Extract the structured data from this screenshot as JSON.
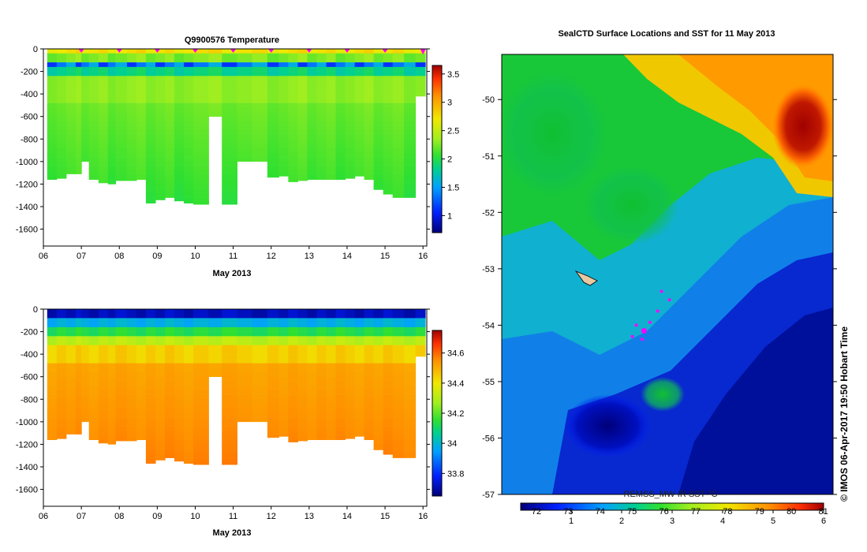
{
  "chart_data": [
    {
      "type": "heatmap",
      "title": "Q9900576  Temperature",
      "xlabel": "May 2013",
      "ylabel": "",
      "x_ticks": [
        "06",
        "07",
        "08",
        "09",
        "10",
        "11",
        "12",
        "13",
        "14",
        "15",
        "16"
      ],
      "y_ticks": [
        0,
        -200,
        -400,
        -600,
        -800,
        -1000,
        -1200,
        -1400,
        -1600
      ],
      "ylim": [
        -1750,
        0
      ],
      "xlim": [
        6,
        16.1
      ],
      "colorbar_ticks": [
        1,
        1.5,
        2,
        2.5,
        3,
        3.5
      ],
      "colorbar_range": [
        0.7,
        3.65
      ],
      "profile_markers_day": [
        7,
        8,
        9,
        10,
        11,
        12,
        13,
        14,
        15,
        16
      ],
      "profiles": [
        {
          "day": 6.1,
          "depth": -1160
        },
        {
          "day": 6.35,
          "depth": -1150
        },
        {
          "day": 6.6,
          "depth": -1110
        },
        {
          "day": 6.85,
          "depth": -1110
        },
        {
          "day": 7.0,
          "depth": -1000
        },
        {
          "day": 7.2,
          "depth": -1160
        },
        {
          "day": 7.45,
          "depth": -1190
        },
        {
          "day": 7.7,
          "depth": -1200
        },
        {
          "day": 7.9,
          "depth": -1170
        },
        {
          "day": 8.2,
          "depth": -1170
        },
        {
          "day": 8.45,
          "depth": -1160
        },
        {
          "day": 8.7,
          "depth": -1370
        },
        {
          "day": 8.95,
          "depth": -1340
        },
        {
          "day": 9.2,
          "depth": -1320
        },
        {
          "day": 9.45,
          "depth": -1350
        },
        {
          "day": 9.7,
          "depth": -1370
        },
        {
          "day": 9.95,
          "depth": -1380
        },
        {
          "day": 10.35,
          "depth": -600
        },
        {
          "day": 10.7,
          "depth": -1380
        },
        {
          "day": 11.1,
          "depth": -1000
        },
        {
          "day": 11.5,
          "depth": -1000
        },
        {
          "day": 11.9,
          "depth": -1140
        },
        {
          "day": 12.2,
          "depth": -1130
        },
        {
          "day": 12.45,
          "depth": -1180
        },
        {
          "day": 12.7,
          "depth": -1170
        },
        {
          "day": 12.95,
          "depth": -1160
        },
        {
          "day": 13.2,
          "depth": -1160
        },
        {
          "day": 13.45,
          "depth": -1160
        },
        {
          "day": 13.7,
          "depth": -1160
        },
        {
          "day": 13.95,
          "depth": -1150
        },
        {
          "day": 14.2,
          "depth": -1130
        },
        {
          "day": 14.45,
          "depth": -1160
        },
        {
          "day": 14.7,
          "depth": -1250
        },
        {
          "day": 14.95,
          "depth": -1290
        },
        {
          "day": 15.2,
          "depth": -1320
        },
        {
          "day": 15.5,
          "depth": -1320
        },
        {
          "day": 15.8,
          "depth": -420
        }
      ]
    },
    {
      "type": "heatmap",
      "title": "",
      "xlabel": "May 2013",
      "ylabel": "",
      "x_ticks": [
        "06",
        "07",
        "08",
        "09",
        "10",
        "11",
        "12",
        "13",
        "14",
        "15",
        "16"
      ],
      "y_ticks": [
        0,
        -200,
        -400,
        -600,
        -800,
        -1000,
        -1200,
        -1400,
        -1600
      ],
      "ylim": [
        -1750,
        0
      ],
      "xlim": [
        6,
        16.1
      ],
      "colorbar_ticks": [
        33.8,
        34,
        34.2,
        34.4,
        34.6
      ],
      "colorbar_range": [
        33.65,
        34.75
      ]
    },
    {
      "type": "heatmap",
      "title": "SealCTD Surface Locations and SST for 11 May 2013",
      "xlabel": "",
      "ylabel": "",
      "y_ticks": [
        -50,
        -51,
        -52,
        -53,
        -54,
        -55,
        -56,
        -57
      ],
      "ylim": [
        -57,
        -49.2
      ],
      "colorbar_top_ticks": [
        72,
        73,
        74,
        75,
        76,
        77,
        78,
        79,
        80,
        81
      ],
      "colorbar_bottom_ticks": [
        1,
        2,
        3,
        4,
        5,
        6
      ],
      "colorbar_label": "REMSS_MW-IR SST °C",
      "colorbar_range_c": [
        0,
        6
      ],
      "seal_track": [
        {
          "lon": 76.6,
          "lat": -53.4
        },
        {
          "lon": 76.8,
          "lat": -53.55
        },
        {
          "lon": 76.5,
          "lat": -53.75
        },
        {
          "lon": 76.3,
          "lat": -53.95
        },
        {
          "lon": 76.15,
          "lat": -54.1
        },
        {
          "lon": 76.1,
          "lat": -54.25
        },
        {
          "lon": 75.95,
          "lat": -54.0
        },
        {
          "lon": 75.85,
          "lat": -54.2
        }
      ]
    }
  ],
  "credit": "© IMOS 06-Apr-2017 19:50 Hobart Time",
  "colors": {
    "marker": "#ff00ff",
    "axis": "#000000"
  }
}
